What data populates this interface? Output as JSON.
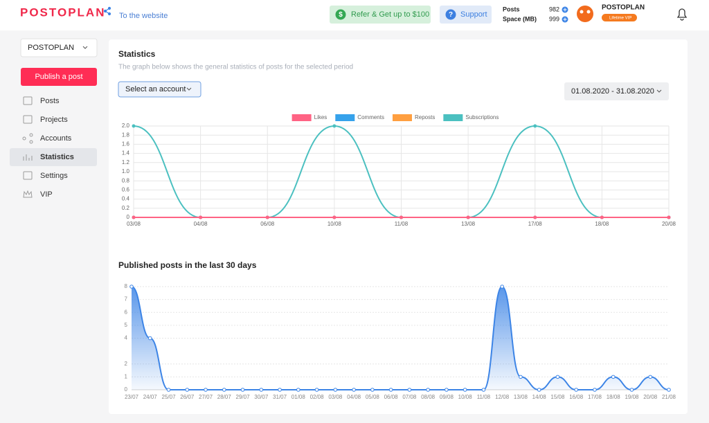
{
  "header": {
    "logo": "POSTOPLAN",
    "website_link": "To the website",
    "refer_button": "Refer & Get up to $100",
    "support_button": "Support",
    "stats": [
      {
        "label": "Posts",
        "value": 982
      },
      {
        "label": "Space (MB)",
        "value": 999
      }
    ],
    "user_name": "POSTOPLAN",
    "badge": "Lifetime VIP"
  },
  "sidebar": {
    "project_select": "POSTOPLAN",
    "publish_button": "Publish a post",
    "menu": [
      "Posts",
      "Projects",
      "Accounts",
      "Statistics",
      "Settings",
      "VIP"
    ]
  },
  "statistics": {
    "title": "Statistics",
    "subtitle": "The graph below shows the general statistics of posts for the selected period",
    "account_select": "Select an account",
    "date_range": "01.08.2020 - 31.08.2020"
  },
  "chart_data": [
    {
      "type": "line",
      "grid": "both",
      "categories": [
        "03/08",
        "04/08",
        "06/08",
        "10/08",
        "11/08",
        "13/08",
        "17/08",
        "18/08",
        "20/08"
      ],
      "series": [
        {
          "name": "Likes",
          "color": "#ff6384",
          "values": [
            0,
            0,
            0,
            0,
            0,
            0,
            0,
            0,
            0
          ]
        },
        {
          "name": "Comments",
          "color": "#36a2eb",
          "values": [
            0,
            0,
            0,
            0,
            0,
            0,
            0,
            0,
            0
          ]
        },
        {
          "name": "Reposts",
          "color": "#ff9f40",
          "values": [
            0,
            0,
            0,
            0,
            0,
            0,
            0,
            0,
            0
          ]
        },
        {
          "name": "Subscriptions",
          "color": "#4bc0c0",
          "values": [
            2,
            0,
            0,
            2,
            0,
            0,
            2,
            0,
            0
          ]
        }
      ],
      "ylim": [
        0,
        2
      ],
      "yticks": [
        0,
        0.2,
        0.4,
        0.6,
        0.8,
        {
          "value": 1,
          "label": "1.0"
        },
        1.2,
        1.4,
        1.6,
        1.8,
        {
          "value": 2,
          "label": "2.0"
        }
      ]
    },
    {
      "type": "line",
      "fill": true,
      "grid": "y",
      "title": "Published posts in the last 30 days",
      "color": "#3c84e6",
      "categories": [
        "23/07",
        "24/07",
        "25/07",
        "26/07",
        "27/07",
        "28/07",
        "29/07",
        "30/07",
        "31/07",
        "01/08",
        "02/08",
        "03/08",
        "04/08",
        "05/08",
        "06/08",
        "07/08",
        "08/08",
        "09/08",
        "10/08",
        "11/08",
        "12/08",
        "13/08",
        "14/08",
        "15/08",
        "16/08",
        "17/08",
        "18/08",
        "19/08",
        "20/08",
        "21/08"
      ],
      "values": [
        8,
        4,
        0,
        0,
        0,
        0,
        0,
        0,
        0,
        0,
        0,
        0,
        0,
        0,
        0,
        0,
        0,
        0,
        0,
        0,
        8,
        1,
        0,
        1,
        0,
        0,
        1,
        0,
        1,
        0
      ],
      "ylim": [
        0,
        8
      ],
      "yticks": [
        0,
        1,
        2,
        4,
        5,
        6,
        7,
        8
      ]
    }
  ]
}
